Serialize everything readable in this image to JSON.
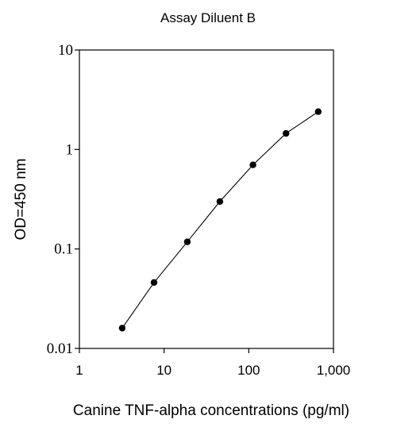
{
  "chart_data": {
    "type": "scatter",
    "title": "Assay Diluent B",
    "xlabel": "Canine TNF-alpha concentrations (pg/ml)",
    "ylabel": "OD=450 nm",
    "x_scale": "log",
    "y_scale": "log",
    "xlim": [
      1,
      1000
    ],
    "ylim": [
      0.01,
      10
    ],
    "x_ticks": [
      1,
      10,
      100,
      1000
    ],
    "x_tick_labels": [
      "1",
      "10",
      "100",
      "1,000"
    ],
    "y_ticks": [
      0.01,
      0.1,
      1,
      10
    ],
    "y_tick_labels": [
      "0.01",
      "0.1",
      "1",
      "10"
    ],
    "grid": false,
    "legend": "none",
    "series": [
      {
        "x": [
          3.2,
          7.6,
          18.8,
          45.5,
          112,
          275,
          660
        ],
        "y": [
          0.016,
          0.046,
          0.118,
          0.3,
          0.7,
          1.45,
          2.4
        ],
        "marker": "circle",
        "line": true,
        "color": "#000000"
      }
    ]
  }
}
